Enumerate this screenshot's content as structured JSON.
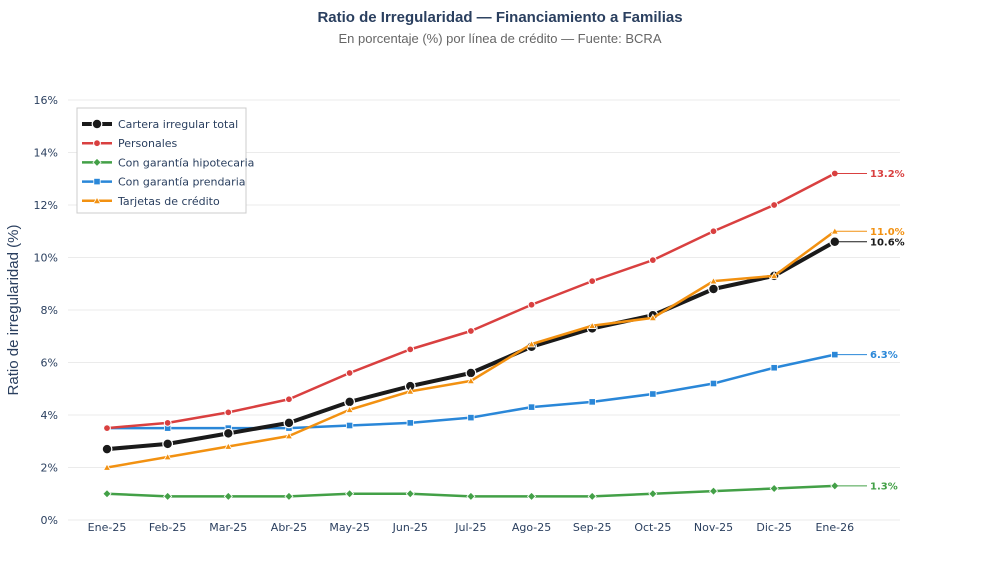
{
  "chart_data": {
    "type": "line",
    "title": "Ratio de Irregularidad — Financiamiento a Familias",
    "subtitle": "En porcentaje (%) por línea de crédito — Fuente: BCRA",
    "ylabel": "Ratio de irregularidad (%)",
    "xlabel": "",
    "ylim": [
      0,
      16
    ],
    "yticks": [
      0,
      2,
      4,
      6,
      8,
      10,
      12,
      14,
      16
    ],
    "ytick_labels": [
      "0%",
      "2%",
      "4%",
      "6%",
      "8%",
      "10%",
      "12%",
      "14%",
      "16%"
    ],
    "categories": [
      "Ene-25",
      "Feb-25",
      "Mar-25",
      "Abr-25",
      "May-25",
      "Jun-25",
      "Jul-25",
      "Ago-25",
      "Sep-25",
      "Oct-25",
      "Nov-25",
      "Dic-25",
      "Ene-26"
    ],
    "legend_position": "top-left",
    "series": [
      {
        "name": "Cartera irregular total",
        "color": "#1a1a1a",
        "marker": "circle-large",
        "width": 4,
        "values": [
          2.7,
          2.9,
          3.3,
          3.7,
          4.5,
          5.1,
          5.6,
          6.6,
          7.3,
          7.8,
          8.8,
          9.3,
          10.6
        ],
        "end_label": "10.6%"
      },
      {
        "name": "Personales",
        "color": "#d94040",
        "marker": "circle",
        "width": 2.5,
        "values": [
          3.5,
          3.7,
          4.1,
          4.6,
          5.6,
          6.5,
          7.2,
          8.2,
          9.1,
          9.9,
          11.0,
          12.0,
          13.2
        ],
        "end_label": "13.2%"
      },
      {
        "name": "Con garantía hipotecaria",
        "color": "#43a047",
        "marker": "diamond",
        "width": 2.5,
        "values": [
          1.0,
          0.9,
          0.9,
          0.9,
          1.0,
          1.0,
          0.9,
          0.9,
          0.9,
          1.0,
          1.1,
          1.2,
          1.3
        ],
        "end_label": "1.3%"
      },
      {
        "name": "Con garantía prendaria",
        "color": "#2a87d8",
        "marker": "square",
        "width": 2.5,
        "values": [
          3.5,
          3.5,
          3.5,
          3.5,
          3.6,
          3.7,
          3.9,
          4.3,
          4.5,
          4.8,
          5.2,
          5.8,
          6.3
        ],
        "end_label": "6.3%"
      },
      {
        "name": "Tarjetas de crédito",
        "color": "#f29111",
        "marker": "triangle",
        "width": 2.5,
        "values": [
          2.0,
          2.4,
          2.8,
          3.2,
          4.2,
          4.9,
          5.3,
          6.7,
          7.4,
          7.7,
          9.1,
          9.3,
          11.0
        ],
        "end_label": "11.0%"
      }
    ]
  }
}
